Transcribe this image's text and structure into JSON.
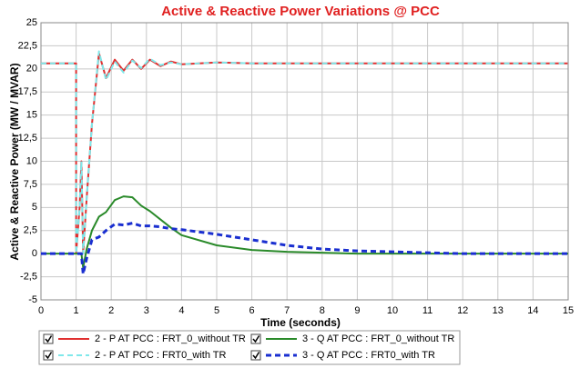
{
  "chart_data": {
    "type": "line",
    "title": "Active & Reactive Power Variations @ PCC",
    "x_label": "Time (seconds)",
    "y_label": "Active & Reactive Power (MW / MVAR)",
    "x": [
      0,
      1,
      1,
      1.1,
      1.15,
      1.2,
      1.3,
      1.45,
      1.65,
      1.85,
      2.1,
      2.35,
      2.6,
      2.85,
      3.1,
      3.4,
      3.7,
      4,
      5,
      6,
      7,
      8,
      9,
      10,
      11,
      12,
      13,
      14,
      15
    ],
    "series": [
      {
        "name": "2 - P AT PCC : FRT_0_without TR",
        "color": "#e03030",
        "style": "solid",
        "values": [
          20.6,
          20.6,
          0,
          5,
          10,
          0,
          6,
          14,
          21.7,
          19,
          21,
          19.8,
          21,
          20,
          21,
          20.3,
          20.8,
          20.5,
          20.7,
          20.6,
          20.6,
          20.6,
          20.6,
          20.6,
          20.6,
          20.6,
          20.6,
          20.6,
          20.6
        ]
      },
      {
        "name": "2 - P AT PCC : FRT0_with TR",
        "color": "#7fe8ea",
        "style": "dashed",
        "values": [
          20.6,
          20.6,
          0,
          5,
          10,
          0,
          6,
          14,
          21.9,
          18.8,
          20.8,
          19.6,
          20.9,
          20.1,
          21.1,
          20.4,
          20.7,
          20.5,
          20.7,
          20.6,
          20.6,
          20.6,
          20.6,
          20.6,
          20.6,
          20.6,
          20.6,
          20.6,
          20.6
        ]
      },
      {
        "name": "3 - Q AT PCC : FRT_0_without TR",
        "color": "#2a8a2a",
        "style": "solid",
        "values": [
          0,
          0,
          0,
          0,
          0,
          -1.5,
          0.5,
          2.5,
          4,
          4.5,
          5.8,
          6.2,
          6.1,
          5.2,
          4.6,
          3.7,
          2.8,
          2,
          0.9,
          0.4,
          0.2,
          0.1,
          0,
          0,
          0,
          0,
          0,
          0,
          0
        ]
      },
      {
        "name": "3 - Q AT PCC : FRT0_with TR",
        "color": "#1a2fd0",
        "style": "dashed",
        "values": [
          0,
          0,
          0,
          0,
          0,
          -2.2,
          -0.5,
          1.5,
          1.8,
          2.5,
          3.2,
          3.1,
          3.3,
          3,
          3,
          2.9,
          2.7,
          2.6,
          2.1,
          1.5,
          0.9,
          0.5,
          0.3,
          0.2,
          0.1,
          0,
          0,
          0,
          0
        ]
      }
    ],
    "xlim": [
      0,
      15
    ],
    "xticks": [
      0,
      1,
      2,
      3,
      4,
      5,
      6,
      7,
      8,
      9,
      10,
      11,
      12,
      13,
      14,
      15
    ],
    "ylim": [
      -5,
      25
    ],
    "yticks": [
      -5,
      {
        "value": -2.5,
        "label": "-2,5"
      },
      0,
      {
        "value": 2.5,
        "label": "2,5"
      },
      5,
      {
        "value": 7.5,
        "label": "7,5"
      },
      10,
      {
        "value": 12.5,
        "label": "12,5"
      },
      15,
      {
        "value": 17.5,
        "label": "17,5"
      },
      20,
      {
        "value": 22.5,
        "label": "22,5"
      },
      25
    ],
    "grid": true
  }
}
